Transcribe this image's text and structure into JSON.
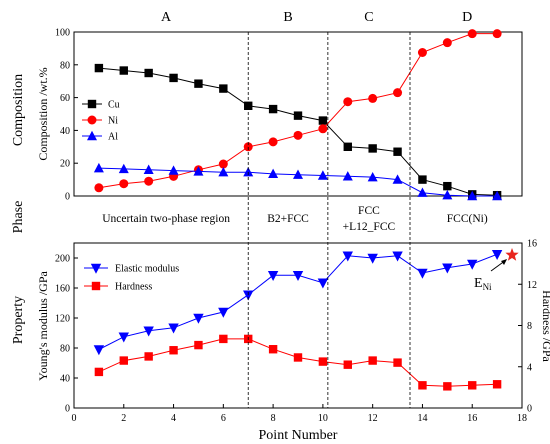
{
  "chart_data": [
    {
      "type": "line",
      "panel": "composition",
      "ylabel": "Composition /wt.%",
      "xlim": [
        0,
        18
      ],
      "ylim": [
        0,
        100
      ],
      "yticks": [
        0,
        20,
        40,
        60,
        80,
        100
      ],
      "legend_position": "left",
      "regions": [
        "A",
        "B",
        "C",
        "D"
      ],
      "boundaries": [
        7,
        10.2,
        13.5
      ],
      "series": [
        {
          "name": "Cu",
          "color": "#000000",
          "marker": "square",
          "x": [
            1,
            2,
            3,
            4,
            5,
            6,
            7,
            8,
            9,
            10,
            11,
            12,
            13,
            14,
            15,
            16,
            17
          ],
          "y": [
            78,
            76.5,
            75,
            72,
            68.5,
            65.5,
            55,
            53,
            49,
            46,
            30,
            29,
            27,
            10,
            6,
            1,
            0.5
          ]
        },
        {
          "name": "Ni",
          "color": "#ff0000",
          "marker": "circle",
          "x": [
            1,
            2,
            3,
            4,
            5,
            6,
            7,
            8,
            9,
            10,
            11,
            12,
            13,
            14,
            15,
            16,
            17
          ],
          "y": [
            5,
            7.5,
            9,
            12,
            16,
            19.5,
            30,
            33,
            37,
            41,
            57.5,
            59.5,
            63,
            87.5,
            93.5,
            99,
            99
          ]
        },
        {
          "name": "Al",
          "color": "#0000ff",
          "marker": "triangle-up",
          "x": [
            1,
            2,
            3,
            4,
            5,
            6,
            7,
            8,
            9,
            10,
            11,
            12,
            13,
            14,
            15,
            16,
            17
          ],
          "y": [
            17,
            16.5,
            16,
            15.5,
            15,
            14.5,
            14.5,
            13.5,
            13,
            12.5,
            12,
            11.5,
            10,
            2,
            0.5,
            0,
            0
          ]
        }
      ]
    },
    {
      "type": "line",
      "panel": "property",
      "xlabel": "Point Number",
      "ylabel": "Young's modulus /GPa",
      "ylabel_right": "Hardness /GPa",
      "xlim": [
        0,
        18
      ],
      "xticks": [
        0,
        2,
        4,
        6,
        8,
        10,
        12,
        14,
        16,
        18
      ],
      "ylim": [
        0,
        220
      ],
      "yticks": [
        0,
        40,
        80,
        120,
        160,
        200
      ],
      "ylim_right": [
        0,
        16
      ],
      "yticks_right": [
        0,
        4,
        8,
        12,
        16
      ],
      "legend_position": "top-left",
      "series": [
        {
          "name": "Elastic modulus",
          "color": "#0000ff",
          "marker": "triangle-down",
          "axis": "left",
          "x": [
            1,
            2,
            3,
            4,
            5,
            6,
            7,
            8,
            9,
            10,
            11,
            12,
            13,
            14,
            15,
            16,
            17
          ],
          "y": [
            78,
            95,
            103,
            107,
            120,
            128,
            151,
            177,
            177,
            167,
            203,
            200,
            203,
            180,
            187,
            192,
            205
          ]
        },
        {
          "name": "Hardness",
          "color": "#ff0000",
          "marker": "square",
          "axis": "right",
          "x": [
            1,
            2,
            3,
            4,
            5,
            6,
            7,
            8,
            9,
            10,
            11,
            12,
            13,
            14,
            15,
            16,
            17
          ],
          "y": [
            3.5,
            4.6,
            5.0,
            5.6,
            6.1,
            6.7,
            6.7,
            5.7,
            4.9,
            4.5,
            4.2,
            4.6,
            4.4,
            2.2,
            2.1,
            2.2,
            2.3
          ]
        },
        {
          "name": "E_Ni",
          "color": "#e8251d",
          "marker": "star",
          "axis": "left",
          "x": [
            17.6
          ],
          "y": [
            204
          ]
        }
      ],
      "annotation": {
        "text": "E",
        "sub": "Ni"
      }
    }
  ],
  "phase_labels": [
    {
      "lines": [
        "Uncertain two-phase region"
      ],
      "x": 3.7
    },
    {
      "lines": [
        "B2+FCC"
      ],
      "x": 8.6
    },
    {
      "lines": [
        "FCC",
        "+L12_FCC"
      ],
      "x": 11.85
    },
    {
      "lines": [
        "FCC(Ni)"
      ],
      "x": 15.8
    }
  ],
  "side_labels": {
    "composition": "Composition",
    "phase": "Phase",
    "property": "Property"
  }
}
